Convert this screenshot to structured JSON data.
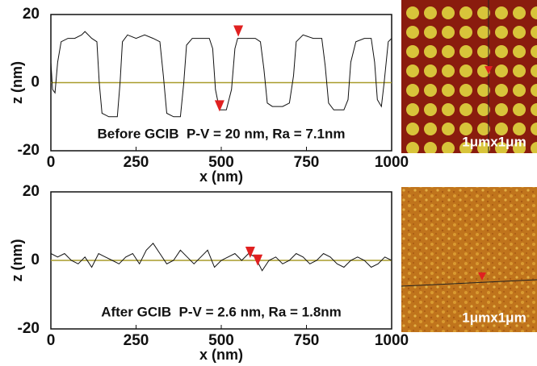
{
  "chart_data": [
    {
      "type": "line",
      "x": [
        0,
        5,
        12,
        20,
        30,
        50,
        70,
        90,
        100,
        120,
        135,
        142,
        150,
        170,
        195,
        203,
        210,
        225,
        250,
        275,
        300,
        320,
        330,
        340,
        360,
        380,
        390,
        398,
        415,
        440,
        465,
        475,
        483,
        495,
        515,
        530,
        540,
        548,
        570,
        600,
        615,
        625,
        635,
        650,
        680,
        700,
        712,
        720,
        740,
        770,
        795,
        805,
        815,
        830,
        860,
        872,
        880,
        895,
        920,
        940,
        950,
        958,
        970,
        978,
        990,
        1000
      ],
      "series": [
        {
          "color": "#111111",
          "values": [
            6,
            -2,
            -3,
            6,
            12,
            13,
            13,
            14,
            15,
            13,
            12,
            0,
            -9,
            -10,
            -10,
            0,
            12,
            14,
            13,
            14,
            13,
            12,
            2,
            -9,
            -10,
            -10,
            0,
            11,
            13,
            13,
            13,
            10,
            -2,
            -8,
            -8,
            -2,
            10,
            13,
            13,
            13,
            12,
            4,
            -6,
            -7,
            -7,
            -6,
            2,
            12,
            14,
            13,
            13,
            5,
            -6,
            -8,
            -8,
            -5,
            6,
            12,
            13,
            13,
            6,
            -5,
            -7,
            0,
            12,
            13
          ]
        }
      ],
      "markers": {
        "x": [
          550,
          495
        ],
        "values": [
          13.5,
          -8.5
        ],
        "color": "#e02020"
      },
      "hline": 0,
      "hline_color": "#a89b2a",
      "xlim": [
        0,
        1000
      ],
      "ylim": [
        -20,
        20
      ],
      "xticks": [
        0,
        250,
        500,
        750,
        1000
      ],
      "yticks": [
        -20,
        0,
        20
      ],
      "x_label": "x (nm)",
      "y_label": "z (nm)",
      "annotation": "Before GCIB  P-V = 20 nm, Ra = 7.1nm",
      "image_label": "1μmx1μm"
    },
    {
      "type": "line",
      "x": [
        0,
        20,
        40,
        60,
        80,
        100,
        120,
        140,
        160,
        180,
        200,
        220,
        240,
        260,
        280,
        300,
        320,
        340,
        360,
        380,
        400,
        420,
        440,
        460,
        480,
        500,
        520,
        540,
        560,
        580,
        600,
        620,
        640,
        660,
        680,
        700,
        720,
        740,
        760,
        780,
        800,
        820,
        840,
        860,
        880,
        900,
        920,
        940,
        960,
        980,
        1000
      ],
      "series": [
        {
          "color": "#111111",
          "values": [
            2,
            1,
            2,
            0,
            -1,
            1,
            -2,
            2,
            1,
            0,
            -1,
            1,
            2,
            -1,
            3,
            5,
            2,
            -1,
            0,
            3,
            1,
            -1,
            1,
            3,
            -2,
            0,
            1,
            2,
            0,
            2,
            1,
            -3,
            0,
            1,
            -1,
            0,
            2,
            1,
            -1,
            0,
            2,
            1,
            -1,
            -2,
            0,
            1,
            0,
            -2,
            -1,
            1,
            0
          ]
        }
      ],
      "markers": {
        "x": [
          585,
          607
        ],
        "values": [
          0.7,
          -1.6
        ],
        "color": "#e02020"
      },
      "hline": 0,
      "hline_color": "#a89b2a",
      "xlim": [
        0,
        1000
      ],
      "ylim": [
        -20,
        20
      ],
      "xticks": [
        0,
        250,
        500,
        750,
        1000
      ],
      "yticks": [
        -20,
        0,
        20
      ],
      "x_label": "x (nm)",
      "y_label": "z (nm)",
      "annotation": "After GCIB  P-V = 2.6 nm, Ra = 1.8nm",
      "image_label": "1μmx1μm"
    }
  ]
}
